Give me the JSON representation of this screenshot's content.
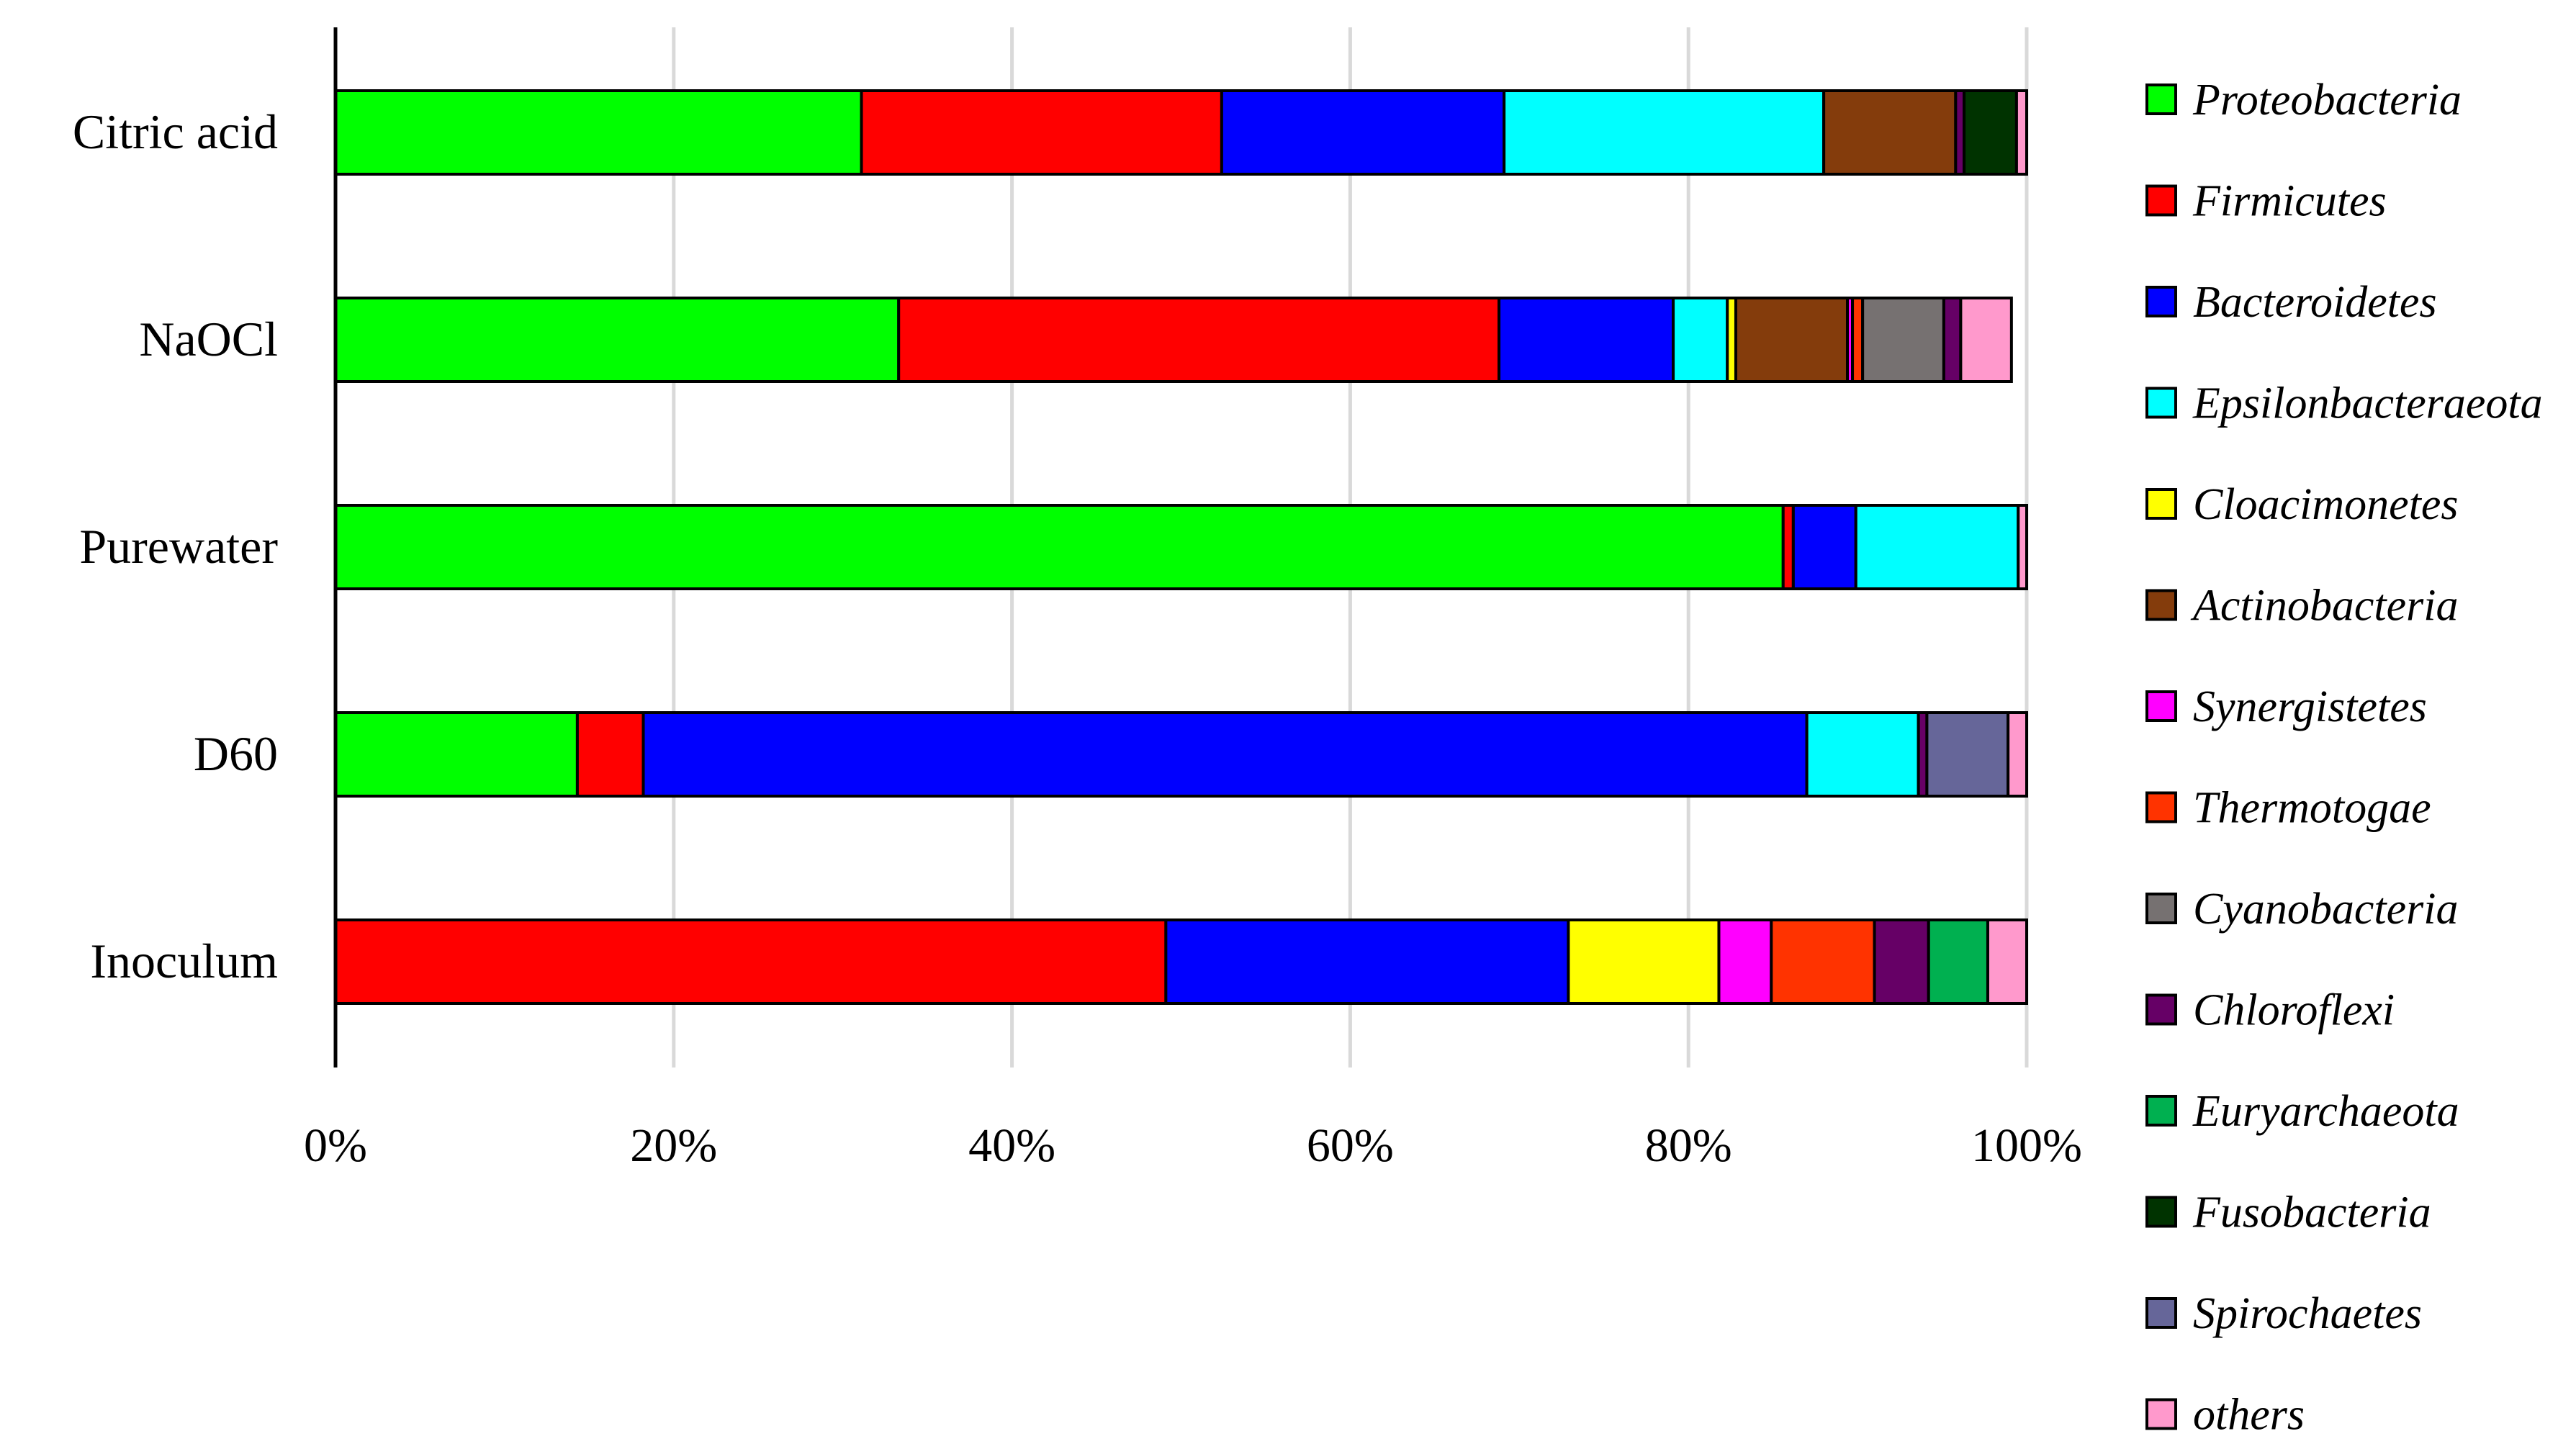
{
  "chart_data": {
    "type": "bar",
    "orientation": "horizontal",
    "stacked": true,
    "normalized": true,
    "categories": [
      "Citric acid",
      "NaOCl",
      "Purewater",
      "D60",
      "Inoculum"
    ],
    "xlim": [
      0,
      100
    ],
    "xticks": [
      "0%",
      "20%",
      "40%",
      "60%",
      "80%",
      "100%"
    ],
    "grid": "vertical",
    "legend_position": "right",
    "series": [
      {
        "name": "Proteobacteria",
        "color": "#00FF00",
        "values": [
          31.1,
          33.3,
          85.6,
          14.3,
          0.0
        ]
      },
      {
        "name": "Firmicutes",
        "color": "#FF0000",
        "values": [
          21.3,
          35.5,
          0.6,
          3.9,
          49.1
        ]
      },
      {
        "name": "Bacteroidetes",
        "color": "#0000FF",
        "values": [
          16.7,
          10.3,
          3.7,
          68.8,
          23.8
        ]
      },
      {
        "name": "Epsilonbacteraeota",
        "color": "#00FFFF",
        "values": [
          18.9,
          3.2,
          9.6,
          6.6,
          0.0
        ]
      },
      {
        "name": "Cloacimonetes",
        "color": "#FFFF00",
        "values": [
          0.0,
          0.5,
          0.0,
          0.0,
          8.9
        ]
      },
      {
        "name": "Actinobacteria",
        "color": "#843C0C",
        "values": [
          7.8,
          6.6,
          0.0,
          0.0,
          0.0
        ]
      },
      {
        "name": "Synergistetes",
        "color": "#FF00FF",
        "values": [
          0.0,
          0.3,
          0.0,
          0.0,
          3.1
        ]
      },
      {
        "name": "Thermotogae",
        "color": "#FF3300",
        "values": [
          0.0,
          0.6,
          0.0,
          0.0,
          6.1
        ]
      },
      {
        "name": "Cyanobacteria",
        "color": "#767171",
        "values": [
          0.0,
          4.8,
          0.0,
          0.0,
          0.0
        ]
      },
      {
        "name": "Chloroflexi",
        "color": "#660066",
        "values": [
          0.5,
          1.0,
          0.0,
          0.5,
          3.2
        ]
      },
      {
        "name": "Euryarchaeota",
        "color": "#00B050",
        "values": [
          0.0,
          0.0,
          0.0,
          0.0,
          3.5
        ]
      },
      {
        "name": "Fusobacteria",
        "color": "#003300",
        "values": [
          3.1,
          0.0,
          0.0,
          0.0,
          0.0
        ]
      },
      {
        "name": "Spirochaetes",
        "color": "#666699",
        "values": [
          0.0,
          0.0,
          0.0,
          4.8,
          0.0
        ]
      },
      {
        "name": "others",
        "color": "#FF99CC",
        "values": [
          0.6,
          3.0,
          0.5,
          1.1,
          2.3
        ]
      }
    ]
  }
}
